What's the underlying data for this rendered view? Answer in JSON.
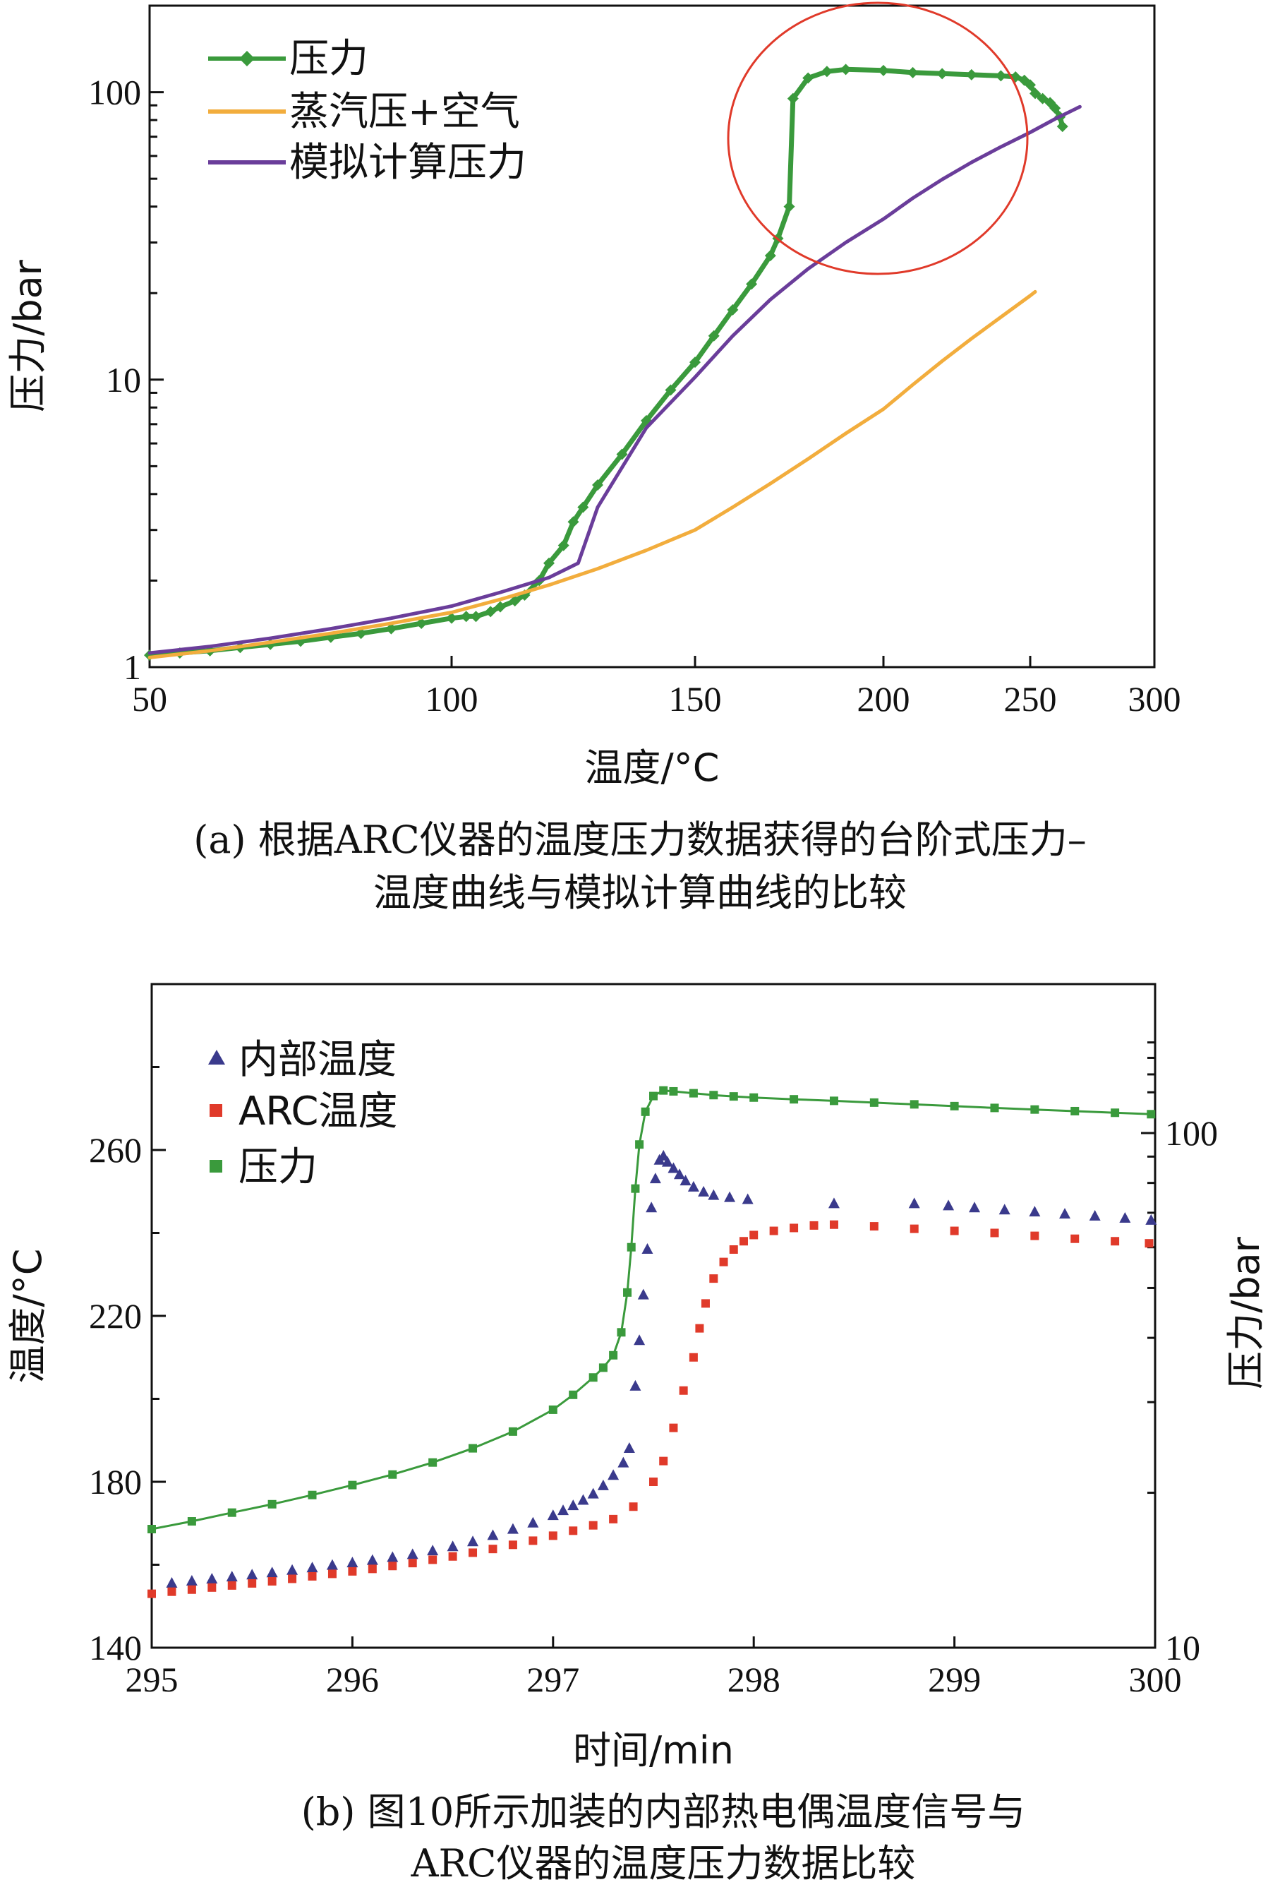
{
  "chart_data": [
    {
      "type": "line",
      "caption_lines": [
        "(a) 根据ARC仪器的温度压力数据获得的台阶式压力–",
        "温度曲线与模拟计算曲线的比较"
      ],
      "xlabel": "温度/°C",
      "ylabel": "压力/bar",
      "xlim": [
        50,
        300
      ],
      "ylim": [
        1,
        200
      ],
      "yscale": "log",
      "xticks": [
        "50",
        "100",
        "150",
        "200",
        "250",
        "300"
      ],
      "yticks": [
        "1",
        "10",
        "100"
      ],
      "legend_position": "top-left",
      "annotation": "red circle around the pressure plateau at 180–250 °C",
      "series": [
        {
          "name": "压力",
          "color": "#3a9a3c",
          "marker": "diamond",
          "x": [
            50,
            55,
            60,
            65,
            70,
            75,
            80,
            85,
            90,
            95,
            100,
            103,
            105,
            108,
            110,
            113,
            115,
            118,
            120,
            123,
            125,
            127,
            130,
            135,
            140,
            145,
            150,
            155,
            160,
            165,
            170,
            172,
            175,
            176,
            180,
            185,
            190,
            200,
            210,
            220,
            230,
            240,
            245,
            248,
            250,
            252,
            255,
            258,
            260,
            262,
            263
          ],
          "y": [
            1.1,
            1.12,
            1.14,
            1.17,
            1.2,
            1.23,
            1.27,
            1.31,
            1.36,
            1.42,
            1.48,
            1.5,
            1.5,
            1.56,
            1.62,
            1.7,
            1.78,
            2.0,
            2.3,
            2.65,
            3.2,
            3.6,
            4.3,
            5.5,
            7.2,
            9.2,
            11.5,
            14.2,
            17.5,
            21.5,
            27,
            31,
            40,
            95,
            112,
            118,
            120,
            119,
            117,
            116,
            115,
            114,
            113,
            110,
            106,
            99,
            95,
            92,
            88,
            82,
            76
          ]
        },
        {
          "name": "蒸汽压+空气",
          "color": "#f2ad3d",
          "marker": "none",
          "x": [
            50,
            60,
            70,
            80,
            90,
            100,
            110,
            120,
            130,
            140,
            150,
            160,
            170,
            180,
            190,
            200,
            210,
            220,
            230,
            240,
            250,
            252
          ],
          "y": [
            1.08,
            1.14,
            1.22,
            1.31,
            1.42,
            1.55,
            1.72,
            1.93,
            2.2,
            2.55,
            3.0,
            3.6,
            4.35,
            5.3,
            6.5,
            7.9,
            9.6,
            11.6,
            13.9,
            16.5,
            19.6,
            20.2
          ]
        },
        {
          "name": "模拟计算压力",
          "color": "#6a3d9a",
          "marker": "none",
          "x": [
            50,
            60,
            70,
            80,
            90,
            100,
            110,
            120,
            126,
            130,
            140,
            150,
            160,
            170,
            180,
            190,
            200,
            210,
            220,
            230,
            240,
            250,
            260,
            270
          ],
          "y": [
            1.12,
            1.18,
            1.26,
            1.36,
            1.48,
            1.63,
            1.82,
            2.05,
            2.3,
            3.6,
            6.8,
            10.2,
            14.2,
            19.0,
            24.3,
            30.0,
            36.2,
            42.8,
            49.7,
            57.0,
            64.5,
            72.5,
            80.7,
            89.0
          ]
        }
      ]
    },
    {
      "type": "scatter",
      "caption_lines": [
        "(b) 图10所示加装的内部热电偶温度信号与",
        "ARC仪器的温度压力数据比较"
      ],
      "xlabel": "时间/min",
      "ylabel": "温度/°C",
      "y2label": "压力/bar",
      "xlim": [
        295,
        300
      ],
      "ylim": [
        140,
        300
      ],
      "y2lim": [
        10,
        150
      ],
      "y2scale": "log",
      "xticks": [
        "295",
        "296",
        "297",
        "298",
        "299",
        "300"
      ],
      "yticks": [
        "140",
        "180",
        "220",
        "260"
      ],
      "y2ticks": [
        "10",
        "100"
      ],
      "legend_position": "top-left",
      "series": [
        {
          "name": "内部温度",
          "color": "#3a3a8c",
          "marker": "triangle",
          "axis": "left",
          "x": [
            295.1,
            295.2,
            295.3,
            295.4,
            295.5,
            295.6,
            295.7,
            295.8,
            295.9,
            296.0,
            296.1,
            296.2,
            296.3,
            296.4,
            296.5,
            296.6,
            296.7,
            296.8,
            296.9,
            297.0,
            297.05,
            297.1,
            297.15,
            297.2,
            297.25,
            297.3,
            297.35,
            297.38,
            297.41,
            297.43,
            297.45,
            297.47,
            297.49,
            297.51,
            297.53,
            297.55,
            297.57,
            297.6,
            297.63,
            297.66,
            297.7,
            297.75,
            297.8,
            297.88,
            297.97,
            298.4,
            298.8,
            298.97,
            299.1,
            299.25,
            299.4,
            299.55,
            299.7,
            299.85,
            299.98
          ],
          "y": [
            155.5,
            156.0,
            156.5,
            157.0,
            157.5,
            158.0,
            158.6,
            159.2,
            159.8,
            160.4,
            161.0,
            161.7,
            162.4,
            163.3,
            164.3,
            165.5,
            167.0,
            168.5,
            170.0,
            171.8,
            173.0,
            174.2,
            175.5,
            177.0,
            179.0,
            181.5,
            184.5,
            188.0,
            203.0,
            214.0,
            225.0,
            236.0,
            246.0,
            253.0,
            257.5,
            258.5,
            257.0,
            255.5,
            254.0,
            252.5,
            251.0,
            249.8,
            249.0,
            248.5,
            248.0,
            247.0,
            247.0,
            246.5,
            246.0,
            245.5,
            245.0,
            244.5,
            244.0,
            243.5,
            243.0
          ]
        },
        {
          "name": "ARC温度",
          "color": "#e03a2a",
          "marker": "square",
          "axis": "left",
          "x": [
            295.0,
            295.1,
            295.2,
            295.3,
            295.4,
            295.5,
            295.6,
            295.7,
            295.8,
            295.9,
            296.0,
            296.1,
            296.2,
            296.3,
            296.4,
            296.5,
            296.6,
            296.7,
            296.8,
            296.9,
            297.0,
            297.1,
            297.2,
            297.3,
            297.4,
            297.5,
            297.55,
            297.6,
            297.65,
            297.7,
            297.73,
            297.76,
            297.8,
            297.85,
            297.9,
            297.95,
            298.0,
            298.1,
            298.2,
            298.3,
            298.4,
            298.6,
            298.8,
            299.0,
            299.2,
            299.4,
            299.6,
            299.8,
            299.97
          ],
          "y": [
            153.0,
            153.5,
            154.0,
            154.5,
            155.0,
            155.5,
            156.0,
            156.6,
            157.2,
            157.8,
            158.4,
            159.0,
            159.7,
            160.4,
            161.2,
            162.0,
            162.9,
            163.8,
            164.8,
            165.8,
            167.0,
            168.2,
            169.5,
            171.0,
            174.0,
            180.0,
            185.0,
            193.0,
            202.0,
            210.0,
            217.0,
            223.0,
            229.0,
            233.0,
            236.0,
            238.0,
            239.5,
            240.5,
            241.2,
            241.8,
            242.0,
            241.6,
            241.0,
            240.5,
            240.0,
            239.3,
            238.6,
            238.0,
            237.5
          ]
        },
        {
          "name": "压力",
          "color": "#3a9a3c",
          "marker": "square",
          "axis": "right",
          "x": [
            295.0,
            295.2,
            295.4,
            295.6,
            295.8,
            296.0,
            296.2,
            296.4,
            296.6,
            296.8,
            297.0,
            297.1,
            297.2,
            297.25,
            297.3,
            297.34,
            297.37,
            297.39,
            297.41,
            297.43,
            297.46,
            297.5,
            297.55,
            297.6,
            297.7,
            297.8,
            297.9,
            298.0,
            298.2,
            298.4,
            298.6,
            298.8,
            299.0,
            299.2,
            299.4,
            299.6,
            299.8,
            299.98
          ],
          "y": [
            17.0,
            17.6,
            18.3,
            19.0,
            19.8,
            20.7,
            21.7,
            22.9,
            24.4,
            26.3,
            29.0,
            31.0,
            33.5,
            35.0,
            37.0,
            41.0,
            49.0,
            60.0,
            78.0,
            95.0,
            110.0,
            118.0,
            121.0,
            120.5,
            119.5,
            118.5,
            117.8,
            117.2,
            116.3,
            115.5,
            114.6,
            113.7,
            112.8,
            111.9,
            111.1,
            110.3,
            109.5,
            108.8
          ]
        }
      ]
    }
  ]
}
